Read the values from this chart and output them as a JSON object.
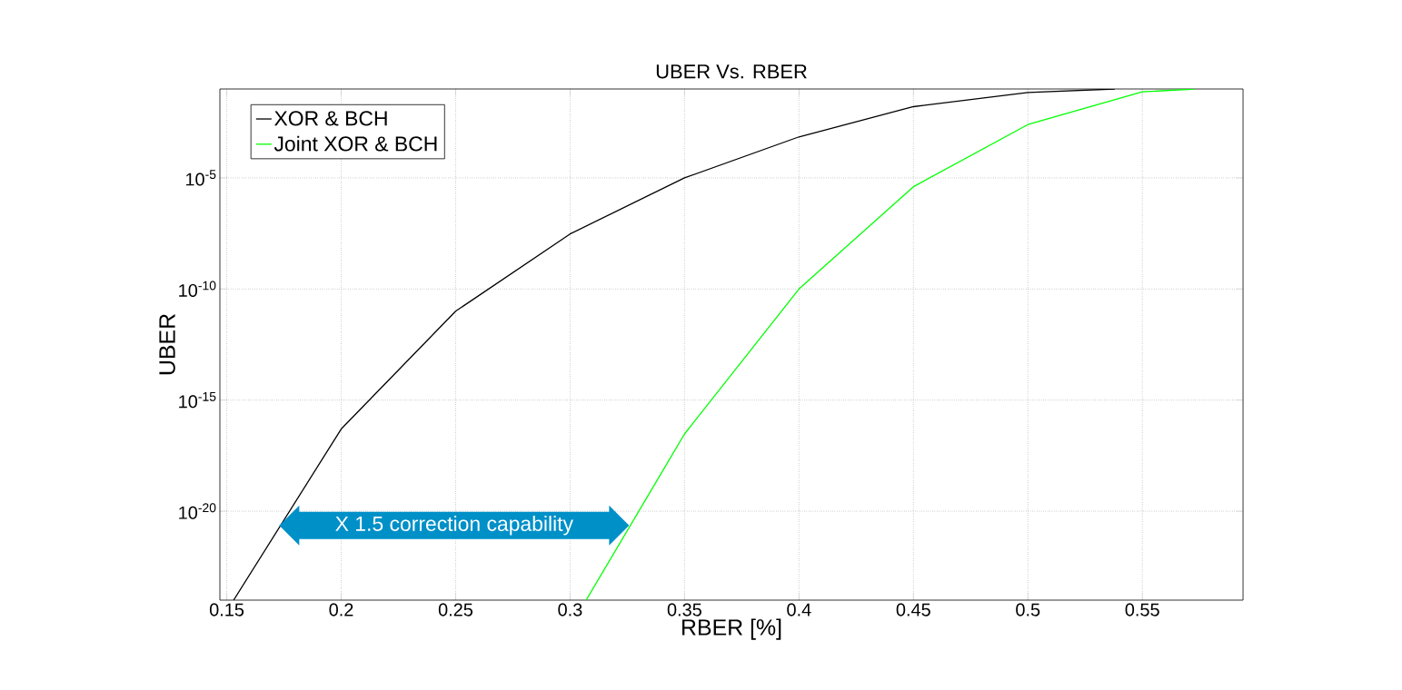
{
  "chart_data": {
    "type": "line",
    "title": "UBER Vs. RBER",
    "xlabel": "RBER [%]",
    "ylabel": "UBER",
    "log": "y",
    "grid": true,
    "legend": "top left",
    "marker": "none",
    "line_style": "solid",
    "xlim": [
      0.147,
      0.594
    ],
    "ylim": [
      1e-24,
      0.1
    ],
    "xticks": [
      0.15,
      0.2,
      0.25,
      0.3,
      0.35,
      0.4,
      0.45,
      0.5,
      0.55
    ],
    "yticks": [
      {
        "value": 1e-20,
        "label": "10$^{-20}$"
      },
      {
        "value": 1e-15,
        "label": "10$^{-15}$"
      },
      {
        "value": 1e-10,
        "label": "10$^{-10}$"
      },
      {
        "value": 1e-05,
        "label": "10$^{-5}$"
      }
    ],
    "annotations": [
      "X 1.5 correction capability"
    ],
    "series": [
      {
        "name": "XOR & BCH",
        "color": "#000000",
        "x": [
          0.153,
          0.2,
          0.25,
          0.3,
          0.35,
          0.4,
          0.45,
          0.5,
          0.538
        ],
        "values": [
          1e-24,
          5e-17,
          1e-11,
          3e-08,
          1e-05,
          0.0007,
          0.016,
          0.07,
          0.1
        ]
      },
      {
        "name": "Joint XOR & BCH",
        "color": "#00ff00",
        "x": [
          0.307,
          0.35,
          0.4,
          0.45,
          0.5,
          0.55,
          0.573
        ],
        "values": [
          1e-24,
          3e-17,
          1e-10,
          4e-06,
          0.0025,
          0.074,
          0.1
        ]
      }
    ]
  }
}
